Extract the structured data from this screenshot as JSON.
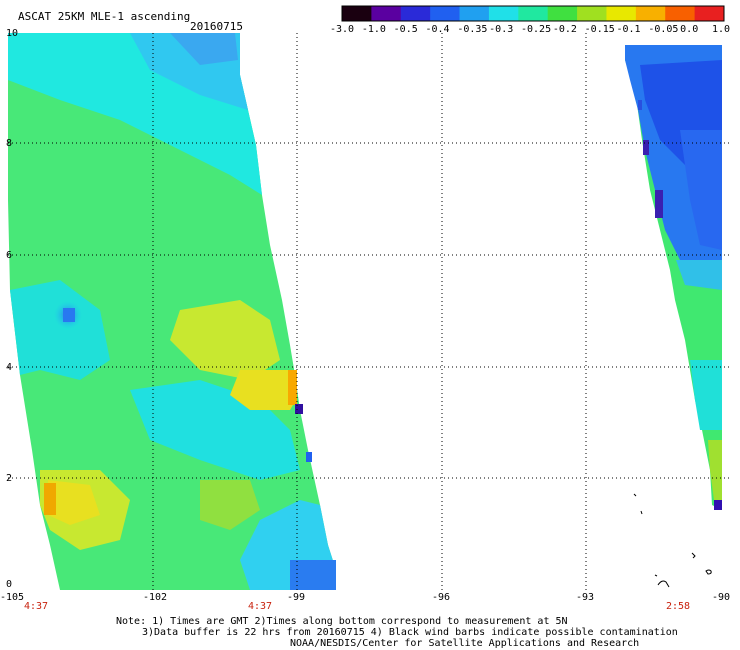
{
  "header": {
    "title": "ASCAT 25KM MLE-1 ascending",
    "date": "20160715"
  },
  "colorbar": {
    "labels": [
      "-3.0",
      "-1.0",
      "-0.5",
      "-0.4",
      "-0.35",
      "-0.3",
      "-0.25",
      "-0.2",
      "-0.15",
      "-0.1",
      "-0.05",
      "0.0",
      "1.0"
    ],
    "colors": [
      "#1a0010",
      "#5a00a0",
      "#2a2ad8",
      "#2060f0",
      "#20a0f0",
      "#20e0e8",
      "#20e8a0",
      "#40e040",
      "#a0e020",
      "#e8e800",
      "#f8b000",
      "#f86000",
      "#e82020"
    ]
  },
  "axes": {
    "x_ticks": [
      "-105",
      "-102",
      "-99",
      "-96",
      "-93",
      "-90"
    ],
    "y_ticks": [
      "0",
      "2",
      "4",
      "6",
      "8",
      "10"
    ],
    "time_labels": [
      "4:37",
      "4:37",
      "2:58"
    ]
  },
  "footer": {
    "line1": "Note: 1) Times are GMT 2)Times along bottom correspond to measurement at 5N",
    "line2": "3)Data buffer is 22 hrs from 20160715 4) Black wind barbs indicate possible contamination",
    "line3": "NOAA/NESDIS/Center for Satellite Applications and Research"
  }
}
